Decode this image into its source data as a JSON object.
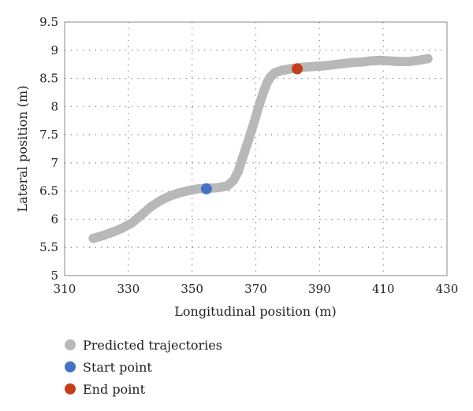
{
  "chart_data": {
    "type": "scatter",
    "xlabel": "Longitudinal position (m)",
    "ylabel": "Lateral position (m)",
    "xlim": [
      310,
      430
    ],
    "ylim": [
      5,
      9.5
    ],
    "xticks": [
      "310",
      "330",
      "350",
      "370",
      "390",
      "410",
      "430"
    ],
    "yticks": [
      "5",
      "5.5",
      "6",
      "6.5",
      "7",
      "7.5",
      "8",
      "8.5",
      "9",
      "9.5"
    ],
    "grid": "dotted",
    "legend_position": "bottom",
    "series": [
      {
        "name": "Predicted trajectories",
        "color": "#b8b8b8",
        "x": [
          319,
          322,
          325,
          328,
          331,
          334,
          337,
          340,
          343,
          346,
          349,
          352,
          355,
          358,
          361,
          363,
          364.5,
          365.5,
          366.5,
          367.5,
          368.5,
          369.5,
          370.5,
          371.5,
          372.5,
          373.5,
          374.5,
          376,
          378,
          380,
          382,
          385,
          388,
          391,
          394,
          397,
          400,
          403,
          406,
          409,
          412,
          415,
          418,
          421,
          424
        ],
        "y": [
          5.66,
          5.71,
          5.77,
          5.84,
          5.93,
          6.07,
          6.22,
          6.33,
          6.41,
          6.47,
          6.51,
          6.54,
          6.55,
          6.56,
          6.59,
          6.69,
          6.85,
          7.03,
          7.2,
          7.37,
          7.55,
          7.73,
          7.92,
          8.1,
          8.27,
          8.42,
          8.52,
          8.6,
          8.64,
          8.66,
          8.68,
          8.7,
          8.71,
          8.72,
          8.74,
          8.76,
          8.78,
          8.79,
          8.81,
          8.82,
          8.81,
          8.8,
          8.8,
          8.82,
          8.85
        ]
      },
      {
        "name": "Start point",
        "color": "#4472c4",
        "x": [
          354.5
        ],
        "y": [
          6.54
        ]
      },
      {
        "name": "End point",
        "color": "#c43e1c",
        "x": [
          383
        ],
        "y": [
          8.67
        ]
      }
    ]
  }
}
